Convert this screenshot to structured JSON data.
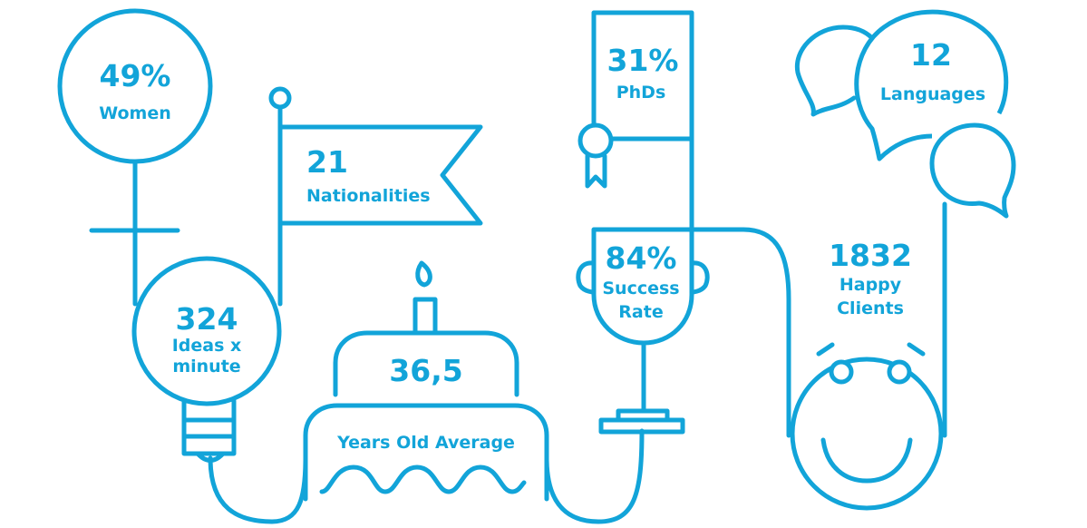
{
  "colors": {
    "accent": "#12a4d9",
    "background": "#ffffff"
  },
  "stats": {
    "women": {
      "value": "49%",
      "label": "Women",
      "icon": "female-symbol-icon"
    },
    "nationalities": {
      "value": "21",
      "label": "Nationalities",
      "icon": "flag-icon"
    },
    "ideas": {
      "value": "324",
      "label_line1": "Ideas x",
      "label_line2": "minute",
      "icon": "light-bulb-icon"
    },
    "age": {
      "value": "36,5",
      "label": "Years Old Average",
      "icon": "birthday-cake-icon"
    },
    "phds": {
      "value": "31%",
      "label": "PhDs",
      "icon": "diploma-ribbon-icon"
    },
    "success": {
      "value": "84%",
      "label_line1": "Success",
      "label_line2": "Rate",
      "icon": "trophy-cup-icon"
    },
    "languages": {
      "value": "12",
      "label": "Languages",
      "icon": "speech-bubbles-icon"
    },
    "clients": {
      "value": "1832",
      "label_line1": "Happy",
      "label_line2": "Clients",
      "icon": "smiley-face-icon"
    }
  }
}
